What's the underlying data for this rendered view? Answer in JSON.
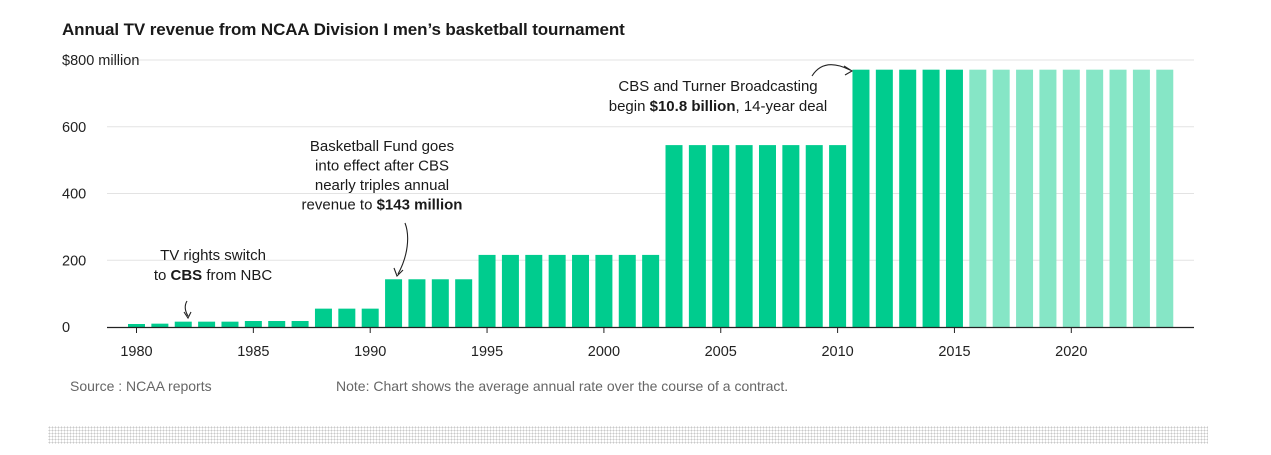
{
  "chart_data": {
    "type": "bar",
    "title": "Annual TV revenue from NCAA Division I men’s basketball tournament",
    "y_unit_label": "$800 million",
    "ylim": [
      0,
      800
    ],
    "y_ticks": [
      0,
      200,
      400,
      600,
      800
    ],
    "y_tick_labels": [
      "0",
      "200",
      "400",
      "600",
      "$800 million"
    ],
    "x_ticks": [
      1980,
      1985,
      1990,
      1995,
      2000,
      2005,
      2010,
      2015,
      2020
    ],
    "x_tick_labels": [
      "1980",
      "1985",
      "1990",
      "1995",
      "2000",
      "2005",
      "2010",
      "2015",
      "2020"
    ],
    "grid": true,
    "categories": [
      1980,
      1981,
      1982,
      1983,
      1984,
      1985,
      1986,
      1987,
      1988,
      1989,
      1990,
      1991,
      1992,
      1993,
      1994,
      1995,
      1996,
      1997,
      1998,
      1999,
      2000,
      2001,
      2002,
      2003,
      2004,
      2005,
      2006,
      2007,
      2008,
      2009,
      2010,
      2011,
      2012,
      2013,
      2014,
      2015,
      2016,
      2017,
      2018,
      2019,
      2020,
      2021,
      2022,
      2023,
      2024
    ],
    "values": [
      9,
      10,
      16,
      16,
      16,
      18,
      18,
      18,
      55,
      55,
      55,
      143,
      143,
      143,
      143,
      216,
      216,
      216,
      216,
      216,
      216,
      216,
      216,
      545,
      545,
      545,
      545,
      545,
      545,
      545,
      545,
      771,
      771,
      771,
      771,
      771,
      771,
      771,
      771,
      771,
      771,
      771,
      771,
      771,
      771
    ],
    "projected_from": 2016,
    "colors": {
      "actual": "#00cc8e",
      "projected": "#86e6c6"
    },
    "annotations": [
      {
        "lines": [
          [
            {
              "t": "TV rights switch",
              "b": false
            }
          ],
          [
            {
              "t": "to ",
              "b": false
            },
            {
              "t": "CBS",
              "b": true
            },
            {
              "t": "  from NBC",
              "b": false
            }
          ]
        ],
        "year": 1982
      },
      {
        "lines": [
          [
            {
              "t": "Basketball Fund goes",
              "b": false
            }
          ],
          [
            {
              "t": "into effect after CBS",
              "b": false
            }
          ],
          [
            {
              "t": "nearly triples annual",
              "b": false
            }
          ],
          [
            {
              "t": "revenue to ",
              "b": false
            },
            {
              "t": "$143 million",
              "b": true
            }
          ]
        ],
        "year": 1991
      },
      {
        "lines": [
          [
            {
              "t": "CBS and Turner Broadcasting",
              "b": false
            }
          ],
          [
            {
              "t": "begin ",
              "b": false
            },
            {
              "t": "$10.8 billion",
              "b": true
            },
            {
              "t": ", 14-year deal",
              "b": false
            }
          ]
        ],
        "year": 2011
      }
    ]
  },
  "footer": {
    "source": "Source : NCAA reports",
    "note": "Note: Chart shows the average annual rate over the course of a contract."
  }
}
